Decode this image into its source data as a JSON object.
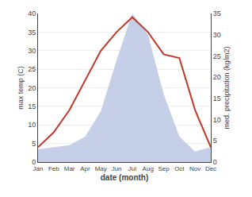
{
  "chart_data": {
    "type": "line",
    "categories": [
      "Jan",
      "Feb",
      "Mar",
      "Apr",
      "May",
      "Jun",
      "Jul",
      "Aug",
      "Sep",
      "Oct",
      "Nov",
      "Dec"
    ],
    "series": [
      {
        "type": "area",
        "axis": "y2",
        "color": "#c5cfe8",
        "values": [
          3,
          3.5,
          4,
          6,
          12,
          24,
          35,
          30,
          16,
          6,
          2.5,
          3.5
        ]
      },
      {
        "type": "line",
        "color": "#c0392b",
        "values": [
          4,
          8,
          14,
          22,
          30,
          35,
          39,
          35,
          29,
          28,
          14,
          4
        ]
      }
    ],
    "x_label": "date (month)",
    "y_label": "max temp (C)",
    "y2_label": "med. precipitation (kg/m2)",
    "ylim": [
      0,
      40
    ],
    "yticks": [
      0,
      5,
      10,
      15,
      20,
      25,
      30,
      35,
      40
    ],
    "y2lim": [
      0,
      35
    ],
    "y2ticks": [
      0,
      5,
      10,
      15,
      20,
      25,
      30,
      35
    ],
    "grid": true
  }
}
